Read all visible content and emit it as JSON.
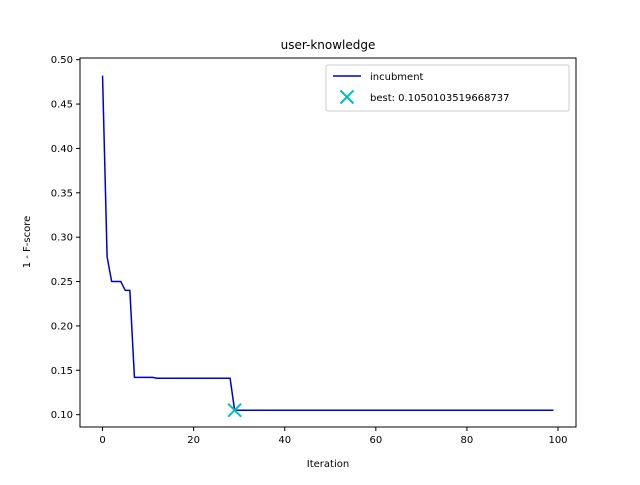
{
  "chart_data": {
    "type": "line",
    "title": "user-knowledge",
    "xlabel": "Iteration",
    "ylabel": "1 - F-score",
    "xlim": [
      -4.95,
      103.95
    ],
    "ylim": [
      0.0861,
      0.5019
    ],
    "xticks": [
      0,
      20,
      40,
      60,
      80,
      100
    ],
    "xtick_labels": [
      "0",
      "20",
      "40",
      "60",
      "80",
      "100"
    ],
    "yticks": [
      0.1,
      0.15,
      0.2,
      0.25,
      0.3,
      0.35,
      0.4,
      0.45,
      0.5
    ],
    "ytick_labels": [
      "0.10",
      "0.15",
      "0.20",
      "0.25",
      "0.30",
      "0.35",
      "0.40",
      "0.45",
      "0.50"
    ],
    "grid": false,
    "legend_position": "top-right",
    "series": [
      {
        "name": "incubment",
        "color": "#0000cc",
        "x": [
          0,
          1,
          2,
          3,
          4,
          5,
          6,
          7,
          8,
          9,
          10,
          11,
          12,
          13,
          14,
          15,
          16,
          17,
          18,
          19,
          20,
          21,
          22,
          23,
          24,
          25,
          26,
          27,
          28,
          29,
          30,
          99
        ],
        "y": [
          0.482,
          0.278,
          0.25,
          0.25,
          0.25,
          0.24,
          0.24,
          0.142,
          0.142,
          0.142,
          0.142,
          0.142,
          0.141,
          0.141,
          0.141,
          0.141,
          0.141,
          0.141,
          0.141,
          0.141,
          0.141,
          0.141,
          0.141,
          0.141,
          0.141,
          0.141,
          0.141,
          0.141,
          0.141,
          0.105,
          0.105,
          0.105
        ]
      }
    ],
    "best": {
      "name": "best: 0.1050103519668737",
      "color": "#00bfbf",
      "x": 29,
      "y": 0.1050103519668737
    }
  }
}
